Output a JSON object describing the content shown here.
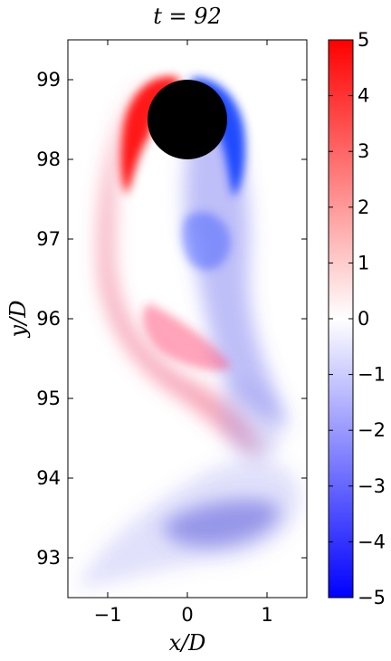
{
  "chart_data": {
    "type": "heatmap",
    "title": "t = 92",
    "xlabel": "x/D",
    "ylabel": "y/D",
    "xlim": [
      -1.5,
      1.5
    ],
    "ylim": [
      92.5,
      99.5
    ],
    "x_ticks": [
      -1,
      0,
      1
    ],
    "y_ticks": [
      93,
      94,
      95,
      96,
      97,
      98,
      99
    ],
    "colorbar": {
      "min": -5,
      "max": 5,
      "ticks": [
        5,
        4,
        3,
        2,
        1,
        0,
        -1,
        -2,
        -3,
        -4,
        -5
      ],
      "colors": {
        "negative": "#0000ff",
        "zero": "#ffffff",
        "positive": "#ff0000"
      }
    },
    "cylinder": {
      "center_x": 0,
      "center_y": 98.5,
      "radius": 0.5,
      "color": "#000000"
    },
    "vortex_regions": [
      {
        "x": -0.6,
        "y": 98.6,
        "value": 4.5
      },
      {
        "x": 0.55,
        "y": 98.6,
        "value": -4.0
      },
      {
        "x": 0.3,
        "y": 96.9,
        "value": -2.5
      },
      {
        "x": -0.2,
        "y": 95.5,
        "value": 1.8
      },
      {
        "x": 0.5,
        "y": 94.8,
        "value": -0.7
      },
      {
        "x": 0.5,
        "y": 93.5,
        "value": -1.4
      },
      {
        "x": -0.7,
        "y": 93.0,
        "value": -0.4
      }
    ]
  }
}
